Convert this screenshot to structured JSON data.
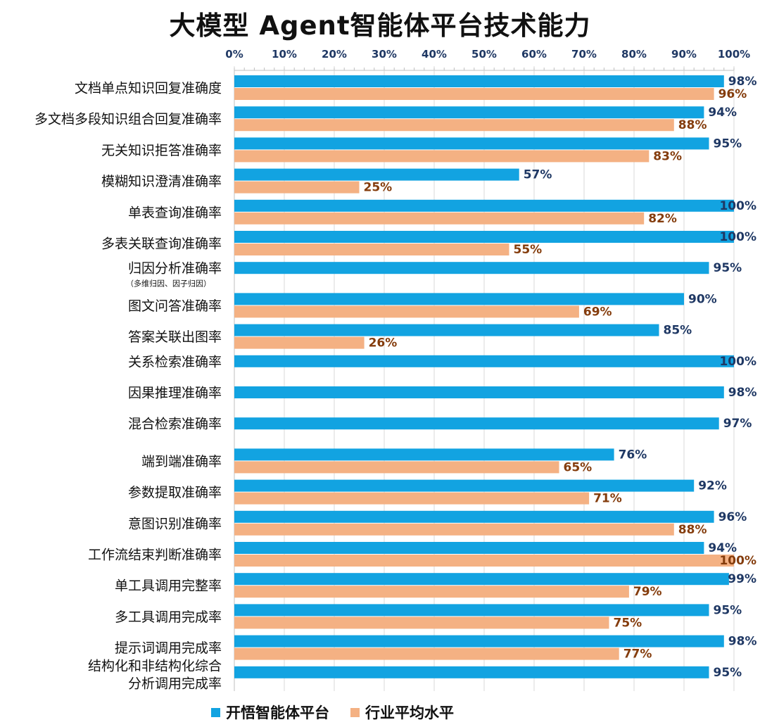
{
  "chart_data": {
    "type": "bar",
    "orientation": "horizontal",
    "title": "大模型 Agent智能体平台技术能力",
    "xlim": [
      0,
      100
    ],
    "x_ticks": [
      "0%",
      "10%",
      "20%",
      "30%",
      "40%",
      "50%",
      "60%",
      "70%",
      "80%",
      "90%",
      "100%"
    ],
    "x_axis_position": "top",
    "grid": true,
    "legend_position": "bottom",
    "categories": [
      {
        "label": "文档单点知识回复准确度"
      },
      {
        "label": "多文档多段知识组合回复准确率"
      },
      {
        "label": "无关知识拒答准确率"
      },
      {
        "label": "模糊知识澄清准确率"
      },
      {
        "label": "单表查询准确率"
      },
      {
        "label": "多表关联查询准确率"
      },
      {
        "label": "归因分析准确率",
        "sublabel": "（多维归因、因子归因）"
      },
      {
        "label": "图文问答准确率"
      },
      {
        "label": "答案关联出图率"
      },
      {
        "label": "关系检索准确率"
      },
      {
        "label": "因果推理准确率"
      },
      {
        "label": "混合检索准确率"
      },
      {
        "label": "端到端准确率"
      },
      {
        "label": "参数提取准确率"
      },
      {
        "label": "意图识别准确率"
      },
      {
        "label": "工作流结束判断准确率"
      },
      {
        "label": "单工具调用完整率"
      },
      {
        "label": "多工具调用完成率"
      },
      {
        "label": "提示词调用完成率"
      },
      {
        "label": "结构化和非结构化综合",
        "label2": "分析调用完成率"
      }
    ],
    "series": [
      {
        "name": "开悟智能体平台",
        "color": "#12a3e1",
        "values": [
          98,
          94,
          95,
          57,
          100,
          100,
          95,
          90,
          85,
          100,
          98,
          97,
          76,
          92,
          96,
          94,
          99,
          95,
          98,
          95
        ],
        "labels": [
          "98%",
          "94%",
          "95%",
          "57%",
          "100%",
          "100%",
          "95%",
          "90%",
          "85%",
          "100%",
          "98%",
          "97%",
          "76%",
          "92%",
          "96%",
          "94%",
          "99%",
          "95%",
          "98%",
          "95%"
        ]
      },
      {
        "name": "行业平均水平",
        "color": "#f4b183",
        "values": [
          96,
          88,
          83,
          25,
          82,
          55,
          null,
          69,
          26,
          null,
          null,
          null,
          65,
          71,
          88,
          100,
          79,
          75,
          77,
          null
        ],
        "labels": [
          "96%",
          "88%",
          "83%",
          "25%",
          "82%",
          "55%",
          null,
          "69%",
          "26%",
          null,
          null,
          null,
          "65%",
          "71%",
          "88%",
          "100%",
          "79%",
          "75%",
          "77%",
          null
        ]
      }
    ]
  }
}
